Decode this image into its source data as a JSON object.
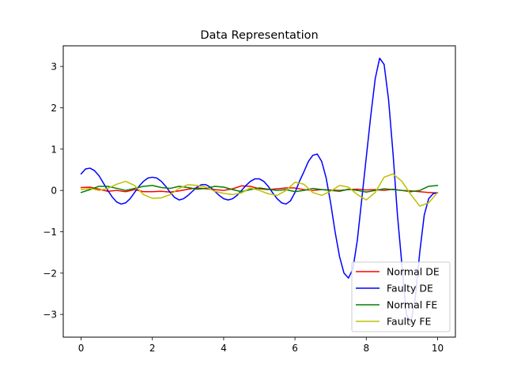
{
  "chart_data": {
    "type": "line",
    "title": "Data Representation",
    "xlabel": "",
    "ylabel": "",
    "xlim": [
      -0.5,
      10.5
    ],
    "ylim": [
      -3.55,
      3.5
    ],
    "xticks": [
      0,
      2,
      4,
      6,
      8,
      10
    ],
    "yticks": [
      -3,
      -2,
      -1,
      0,
      1,
      2,
      3
    ],
    "grid": false,
    "legend_position": "lower-right",
    "series": [
      {
        "name": "Normal DE",
        "color": "#ff0000",
        "x": [
          0,
          0.25,
          0.5,
          0.75,
          1,
          1.25,
          1.5,
          1.75,
          2,
          2.25,
          2.5,
          2.75,
          3,
          3.25,
          3.5,
          3.75,
          4,
          4.25,
          4.5,
          4.75,
          5,
          5.25,
          5.5,
          5.75,
          6,
          6.25,
          6.5,
          6.75,
          7,
          7.25,
          7.5,
          7.75,
          8,
          8.25,
          8.5,
          8.75,
          9,
          9.25,
          9.5,
          9.75,
          10
        ],
        "y": [
          0.07,
          0.08,
          0.03,
          -0.02,
          0.0,
          -0.03,
          0.02,
          -0.03,
          -0.03,
          -0.02,
          -0.04,
          -0.01,
          0.03,
          0.06,
          0.04,
          0.02,
          0.0,
          0.04,
          0.11,
          0.1,
          0.04,
          0.02,
          0.04,
          0.06,
          0.06,
          0.02,
          0.0,
          0.02,
          0.01,
          0.0,
          0.02,
          0.03,
          0.01,
          0.02,
          0.0,
          0.03,
          0.0,
          -0.01,
          -0.03,
          -0.05,
          -0.06
        ]
      },
      {
        "name": "Faulty DE",
        "color": "#0000ff",
        "x": [
          0,
          0.125,
          0.25,
          0.375,
          0.5,
          0.625,
          0.75,
          0.875,
          1,
          1.125,
          1.25,
          1.375,
          1.5,
          1.625,
          1.75,
          1.875,
          2,
          2.125,
          2.25,
          2.375,
          2.5,
          2.625,
          2.75,
          2.875,
          3,
          3.125,
          3.25,
          3.375,
          3.5,
          3.625,
          3.75,
          3.875,
          4,
          4.125,
          4.25,
          4.375,
          4.5,
          4.625,
          4.75,
          4.875,
          5,
          5.125,
          5.25,
          5.375,
          5.5,
          5.625,
          5.75,
          5.875,
          6,
          6.125,
          6.25,
          6.375,
          6.5,
          6.625,
          6.75,
          6.875,
          7,
          7.125,
          7.25,
          7.375,
          7.5,
          7.625,
          7.75,
          7.875,
          8,
          8.125,
          8.25,
          8.375,
          8.5,
          8.625,
          8.75,
          8.875,
          9,
          9.125,
          9.25,
          9.375,
          9.5,
          9.625,
          9.75,
          9.875,
          10
        ],
        "y": [
          0.4,
          0.52,
          0.54,
          0.48,
          0.36,
          0.18,
          0.0,
          -0.16,
          -0.28,
          -0.33,
          -0.3,
          -0.2,
          -0.05,
          0.1,
          0.22,
          0.3,
          0.32,
          0.3,
          0.22,
          0.1,
          -0.05,
          -0.17,
          -0.23,
          -0.2,
          -0.12,
          -0.02,
          0.08,
          0.14,
          0.14,
          0.08,
          -0.02,
          -0.12,
          -0.2,
          -0.23,
          -0.2,
          -0.12,
          0.0,
          0.12,
          0.22,
          0.28,
          0.28,
          0.22,
          0.1,
          -0.06,
          -0.2,
          -0.3,
          -0.33,
          -0.25,
          -0.05,
          0.22,
          0.45,
          0.7,
          0.85,
          0.88,
          0.7,
          0.3,
          -0.3,
          -1.0,
          -1.6,
          -2.0,
          -2.12,
          -1.9,
          -1.2,
          -0.2,
          0.8,
          1.8,
          2.7,
          3.2,
          3.05,
          2.2,
          0.9,
          -0.6,
          -1.8,
          -3.0,
          -3.2,
          -2.6,
          -1.5,
          -0.6,
          -0.2,
          -0.08,
          -0.05
        ]
      },
      {
        "name": "Normal FE",
        "color": "#008000",
        "x": [
          0,
          0.25,
          0.5,
          0.75,
          1,
          1.25,
          1.5,
          1.75,
          2,
          2.25,
          2.5,
          2.75,
          3,
          3.25,
          3.5,
          3.75,
          4,
          4.25,
          4.5,
          4.75,
          5,
          5.25,
          5.5,
          5.75,
          6,
          6.25,
          6.5,
          6.75,
          7,
          7.25,
          7.5,
          7.75,
          8,
          8.25,
          8.5,
          8.75,
          9,
          9.25,
          9.5,
          9.75,
          10
        ],
        "y": [
          -0.05,
          0.02,
          0.1,
          0.1,
          0.05,
          0.0,
          0.05,
          0.1,
          0.12,
          0.07,
          0.05,
          0.1,
          0.07,
          0.03,
          0.05,
          0.1,
          0.08,
          0.02,
          -0.03,
          0.02,
          0.06,
          0.03,
          0.0,
          0.02,
          -0.03,
          0.0,
          0.05,
          0.02,
          0.0,
          -0.02,
          0.03,
          0.0,
          -0.04,
          0.0,
          0.04,
          0.02,
          0.0,
          -0.03,
          0.0,
          0.1,
          0.12
        ]
      },
      {
        "name": "Faulty FE",
        "color": "#bfbf00",
        "x": [
          0,
          0.25,
          0.5,
          0.75,
          1,
          1.25,
          1.5,
          1.75,
          2,
          2.25,
          2.5,
          2.75,
          3,
          3.25,
          3.5,
          3.75,
          4,
          4.25,
          4.5,
          4.75,
          5,
          5.25,
          5.5,
          5.75,
          6,
          6.25,
          6.5,
          6.75,
          7,
          7.25,
          7.5,
          7.75,
          8,
          8.25,
          8.5,
          8.75,
          9,
          9.25,
          9.5,
          9.75,
          10
        ],
        "y": [
          0.02,
          0.05,
          0.0,
          0.05,
          0.15,
          0.22,
          0.12,
          -0.1,
          -0.19,
          -0.18,
          -0.1,
          0.05,
          0.14,
          0.12,
          0.08,
          -0.02,
          -0.07,
          -0.1,
          -0.06,
          0.06,
          0.0,
          -0.08,
          -0.12,
          0.0,
          0.2,
          0.15,
          -0.05,
          -0.12,
          -0.02,
          0.12,
          0.08,
          -0.1,
          -0.23,
          -0.05,
          0.32,
          0.4,
          0.22,
          -0.1,
          -0.38,
          -0.3,
          -0.05
        ]
      }
    ]
  }
}
